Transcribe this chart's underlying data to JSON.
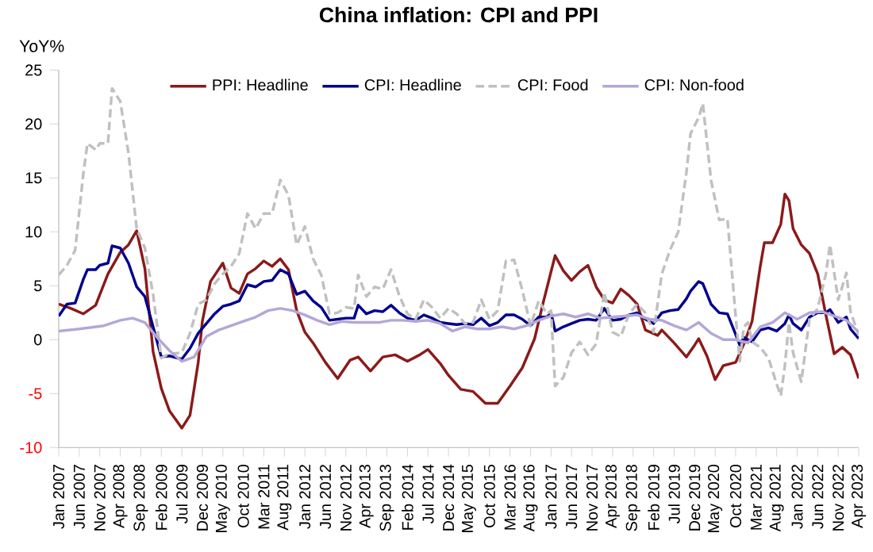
{
  "chart_data": {
    "type": "line",
    "title": "China inflation: CPI and PPI",
    "ylabel": "YoY%",
    "xlim": [
      "2007-01",
      "2023-04"
    ],
    "ylim": [
      -10,
      25
    ],
    "yticks": [
      -10,
      -5,
      0,
      5,
      10,
      15,
      20,
      25
    ],
    "xticks": [
      {
        "value": "2007-01",
        "label": "Jan 2007"
      },
      {
        "value": "2007-06",
        "label": "Jun 2007"
      },
      {
        "value": "2007-11",
        "label": "Nov 2007"
      },
      {
        "value": "2008-04",
        "label": "Apr 2008"
      },
      {
        "value": "2008-09",
        "label": "Sep 2008"
      },
      {
        "value": "2009-02",
        "label": "Feb 2009"
      },
      {
        "value": "2009-07",
        "label": "Jul 2009"
      },
      {
        "value": "2009-12",
        "label": "Dec 2009"
      },
      {
        "value": "2010-05",
        "label": "May 2010"
      },
      {
        "value": "2010-10",
        "label": "Oct 2010"
      },
      {
        "value": "2011-03",
        "label": "Mar 2011"
      },
      {
        "value": "2011-08",
        "label": "Aug 2011"
      },
      {
        "value": "2012-01",
        "label": "Jan 2012"
      },
      {
        "value": "2012-06",
        "label": "Jun 2012"
      },
      {
        "value": "2012-11",
        "label": "Nov 2012"
      },
      {
        "value": "2013-04",
        "label": "Apr 2013"
      },
      {
        "value": "2013-09",
        "label": "Sep 2013"
      },
      {
        "value": "2014-02",
        "label": "Feb 2014"
      },
      {
        "value": "2014-07",
        "label": "Jul 2014"
      },
      {
        "value": "2014-12",
        "label": "Dec 2014"
      },
      {
        "value": "2015-05",
        "label": "May 2015"
      },
      {
        "value": "2015-10",
        "label": "Oct 2015"
      },
      {
        "value": "2016-03",
        "label": "Mar 2016"
      },
      {
        "value": "2016-08",
        "label": "Aug 2016"
      },
      {
        "value": "2017-01",
        "label": "Jan 2017"
      },
      {
        "value": "2017-06",
        "label": "Jun 2017"
      },
      {
        "value": "2017-11",
        "label": "Nov 2017"
      },
      {
        "value": "2018-04",
        "label": "Apr 2018"
      },
      {
        "value": "2018-09",
        "label": "Sep 2018"
      },
      {
        "value": "2019-02",
        "label": "Feb 2019"
      },
      {
        "value": "2019-07",
        "label": "Jul 2019"
      },
      {
        "value": "2019-12",
        "label": "Dec 2019"
      },
      {
        "value": "2020-05",
        "label": "May 2020"
      },
      {
        "value": "2020-10",
        "label": "Oct 2020"
      },
      {
        "value": "2021-03",
        "label": "Mar 2021"
      },
      {
        "value": "2021-08",
        "label": "Aug 2021"
      },
      {
        "value": "2022-01",
        "label": "Jan 2022"
      },
      {
        "value": "2022-06",
        "label": "Jun 2022"
      },
      {
        "value": "2022-11",
        "label": "Nov 2022"
      },
      {
        "value": "2023-04",
        "label": "Apr 2023"
      }
    ],
    "legend": "top",
    "line_style": "solid",
    "marker": "none",
    "series": [
      {
        "name": "PPI: Headline",
        "color": "#8b1a1a",
        "x": [
          "2007-01",
          "2007-04",
          "2007-07",
          "2007-10",
          "2008-01",
          "2008-04",
          "2008-06",
          "2008-08",
          "2008-10",
          "2008-12",
          "2009-02",
          "2009-04",
          "2009-07",
          "2009-09",
          "2009-11",
          "2009-12",
          "2010-02",
          "2010-05",
          "2010-07",
          "2010-09",
          "2010-11",
          "2011-01",
          "2011-03",
          "2011-05",
          "2011-07",
          "2011-09",
          "2011-11",
          "2012-01",
          "2012-03",
          "2012-06",
          "2012-09",
          "2012-12",
          "2013-02",
          "2013-05",
          "2013-08",
          "2013-11",
          "2014-02",
          "2014-05",
          "2014-07",
          "2014-10",
          "2014-12",
          "2015-03",
          "2015-06",
          "2015-09",
          "2015-12",
          "2016-03",
          "2016-06",
          "2016-09",
          "2016-11",
          "2017-02",
          "2017-04",
          "2017-06",
          "2017-08",
          "2017-10",
          "2017-12",
          "2018-02",
          "2018-04",
          "2018-06",
          "2018-08",
          "2018-10",
          "2018-12",
          "2019-03",
          "2019-04",
          "2019-07",
          "2019-10",
          "2019-12",
          "2020-01",
          "2020-03",
          "2020-05",
          "2020-07",
          "2020-10",
          "2020-12",
          "2021-02",
          "2021-04",
          "2021-05",
          "2021-07",
          "2021-09",
          "2021-10",
          "2021-11",
          "2021-12",
          "2022-02",
          "2022-04",
          "2022-06",
          "2022-08",
          "2022-10",
          "2022-12",
          "2023-02",
          "2023-04"
        ],
        "values": [
          3.3,
          2.9,
          2.4,
          3.2,
          6.1,
          8.1,
          8.8,
          10.1,
          6.6,
          -1.1,
          -4.5,
          -6.6,
          -8.2,
          -7.0,
          -2.1,
          1.7,
          5.4,
          7.1,
          4.8,
          4.3,
          6.1,
          6.6,
          7.3,
          6.8,
          7.5,
          6.5,
          2.7,
          0.7,
          -0.3,
          -2.1,
          -3.6,
          -1.9,
          -1.6,
          -2.9,
          -1.6,
          -1.4,
          -2.0,
          -1.4,
          -0.9,
          -2.2,
          -3.3,
          -4.6,
          -4.8,
          -5.9,
          -5.9,
          -4.3,
          -2.6,
          0.1,
          3.3,
          7.8,
          6.4,
          5.5,
          6.3,
          6.9,
          4.9,
          3.7,
          3.4,
          4.7,
          4.1,
          3.3,
          0.9,
          0.4,
          0.9,
          -0.3,
          -1.6,
          -0.5,
          0.1,
          -1.5,
          -3.7,
          -2.4,
          -2.1,
          -0.4,
          1.7,
          6.8,
          9.0,
          9.0,
          10.7,
          13.5,
          12.9,
          10.3,
          8.8,
          8.0,
          6.1,
          2.3,
          -1.3,
          -0.7,
          -1.4,
          -3.6
        ]
      },
      {
        "name": "CPI: Headline",
        "color": "#00008b",
        "x": [
          "2007-01",
          "2007-03",
          "2007-05",
          "2007-07",
          "2007-08",
          "2007-10",
          "2007-11",
          "2008-01",
          "2008-02",
          "2008-04",
          "2008-06",
          "2008-08",
          "2008-10",
          "2008-12",
          "2009-02",
          "2009-04",
          "2009-07",
          "2009-09",
          "2009-11",
          "2010-01",
          "2010-03",
          "2010-05",
          "2010-07",
          "2010-09",
          "2010-11",
          "2011-01",
          "2011-03",
          "2011-05",
          "2011-07",
          "2011-09",
          "2011-11",
          "2012-01",
          "2012-03",
          "2012-05",
          "2012-07",
          "2012-09",
          "2012-11",
          "2013-01",
          "2013-02",
          "2013-04",
          "2013-06",
          "2013-08",
          "2013-10",
          "2013-12",
          "2014-02",
          "2014-04",
          "2014-06",
          "2014-08",
          "2014-10",
          "2014-12",
          "2015-02",
          "2015-04",
          "2015-06",
          "2015-08",
          "2015-10",
          "2015-12",
          "2016-02",
          "2016-04",
          "2016-06",
          "2016-08",
          "2016-10",
          "2016-12",
          "2017-01",
          "2017-02",
          "2017-04",
          "2017-06",
          "2017-08",
          "2017-10",
          "2017-12",
          "2018-02",
          "2018-04",
          "2018-06",
          "2018-08",
          "2018-10",
          "2018-12",
          "2019-02",
          "2019-04",
          "2019-06",
          "2019-08",
          "2019-10",
          "2019-11",
          "2020-01",
          "2020-02",
          "2020-04",
          "2020-06",
          "2020-08",
          "2020-10",
          "2020-11",
          "2020-12",
          "2021-02",
          "2021-04",
          "2021-06",
          "2021-08",
          "2021-10",
          "2021-11",
          "2021-12",
          "2022-02",
          "2022-04",
          "2022-06",
          "2022-08",
          "2022-09",
          "2022-11",
          "2023-01",
          "2023-02",
          "2023-04"
        ],
        "values": [
          2.2,
          3.3,
          3.4,
          5.6,
          6.5,
          6.5,
          6.9,
          7.1,
          8.7,
          8.5,
          7.1,
          4.9,
          4.0,
          1.2,
          -1.6,
          -1.5,
          -1.8,
          -0.8,
          0.6,
          1.5,
          2.4,
          3.1,
          3.3,
          3.6,
          5.1,
          4.9,
          5.4,
          5.5,
          6.5,
          6.1,
          4.2,
          4.5,
          3.6,
          3.0,
          1.8,
          1.9,
          2.0,
          2.0,
          3.2,
          2.4,
          2.7,
          2.6,
          3.2,
          2.5,
          2.0,
          1.8,
          2.3,
          2.0,
          1.6,
          1.5,
          1.4,
          1.5,
          1.4,
          2.0,
          1.3,
          1.6,
          2.3,
          2.3,
          1.9,
          1.3,
          2.1,
          2.1,
          2.5,
          0.8,
          1.2,
          1.5,
          1.8,
          1.9,
          1.8,
          2.9,
          1.8,
          1.9,
          2.3,
          2.5,
          1.9,
          1.5,
          2.5,
          2.7,
          2.8,
          3.8,
          4.5,
          5.4,
          5.2,
          3.3,
          2.5,
          2.4,
          0.5,
          -0.5,
          0.2,
          -0.2,
          0.9,
          1.1,
          0.8,
          1.5,
          2.3,
          1.5,
          0.9,
          2.1,
          2.5,
          2.5,
          2.8,
          1.6,
          2.1,
          1.0,
          0.1
        ]
      },
      {
        "name": "CPI: Food",
        "color": "#c0c0c0",
        "line_style": "dashed",
        "x": [
          "2007-01",
          "2007-03",
          "2007-05",
          "2007-07",
          "2007-08",
          "2007-10",
          "2007-11",
          "2008-01",
          "2008-02",
          "2008-04",
          "2008-06",
          "2008-08",
          "2008-10",
          "2008-12",
          "2009-02",
          "2009-04",
          "2009-07",
          "2009-09",
          "2009-11",
          "2010-01",
          "2010-03",
          "2010-05",
          "2010-07",
          "2010-09",
          "2010-11",
          "2011-01",
          "2011-03",
          "2011-05",
          "2011-07",
          "2011-09",
          "2011-11",
          "2012-01",
          "2012-03",
          "2012-05",
          "2012-07",
          "2012-09",
          "2012-11",
          "2013-01",
          "2013-02",
          "2013-04",
          "2013-06",
          "2013-08",
          "2013-10",
          "2013-12",
          "2014-02",
          "2014-04",
          "2014-06",
          "2014-08",
          "2014-10",
          "2014-12",
          "2015-02",
          "2015-04",
          "2015-06",
          "2015-08",
          "2015-10",
          "2015-12",
          "2016-02",
          "2016-04",
          "2016-06",
          "2016-08",
          "2016-10",
          "2016-12",
          "2017-01",
          "2017-02",
          "2017-04",
          "2017-06",
          "2017-08",
          "2017-10",
          "2017-12",
          "2018-02",
          "2018-04",
          "2018-06",
          "2018-08",
          "2018-10",
          "2018-12",
          "2019-02",
          "2019-04",
          "2019-06",
          "2019-08",
          "2019-10",
          "2019-11",
          "2020-01",
          "2020-02",
          "2020-04",
          "2020-06",
          "2020-08",
          "2020-10",
          "2020-11",
          "2020-12",
          "2021-01",
          "2021-02",
          "2021-04",
          "2021-06",
          "2021-08",
          "2021-09",
          "2021-10",
          "2021-11",
          "2021-12",
          "2022-02",
          "2022-04",
          "2022-06",
          "2022-08",
          "2022-09",
          "2022-11",
          "2023-01",
          "2023-02",
          "2023-04"
        ],
        "values": [
          6.0,
          6.9,
          8.3,
          15.4,
          18.2,
          17.6,
          18.2,
          18.2,
          23.3,
          22.1,
          17.3,
          10.3,
          8.5,
          4.2,
          -1.7,
          -1.3,
          -1.2,
          0.6,
          3.3,
          3.7,
          5.2,
          6.1,
          6.8,
          8.0,
          11.7,
          10.3,
          11.7,
          11.7,
          14.8,
          13.4,
          8.8,
          10.5,
          7.5,
          6.0,
          2.4,
          2.5,
          3.0,
          2.9,
          6.0,
          4.0,
          4.9,
          4.7,
          6.5,
          4.1,
          2.4,
          1.9,
          3.7,
          3.0,
          2.0,
          2.9,
          2.4,
          1.5,
          1.6,
          3.7,
          1.9,
          2.7,
          7.3,
          7.4,
          4.6,
          1.3,
          3.6,
          2.4,
          2.7,
          -4.3,
          -3.5,
          -1.2,
          -0.2,
          -1.4,
          -0.4,
          4.4,
          0.7,
          0.3,
          2.4,
          3.3,
          2.5,
          0.7,
          6.1,
          8.3,
          10.0,
          15.5,
          19.1,
          20.6,
          21.9,
          14.8,
          11.1,
          11.2,
          2.2,
          -2.0,
          1.2,
          1.6,
          -0.2,
          -0.7,
          -1.7,
          -4.1,
          -5.2,
          -2.4,
          1.6,
          -1.2,
          -3.9,
          1.9,
          2.9,
          6.1,
          8.8,
          3.7,
          6.2,
          2.6,
          0.4
        ]
      },
      {
        "name": "CPI: Non-food",
        "color": "#b4a7d6",
        "x": [
          "2007-01",
          "2007-06",
          "2007-12",
          "2008-04",
          "2008-07",
          "2008-10",
          "2009-01",
          "2009-04",
          "2009-07",
          "2009-10",
          "2010-01",
          "2010-04",
          "2010-07",
          "2010-10",
          "2011-01",
          "2011-04",
          "2011-07",
          "2011-10",
          "2012-01",
          "2012-04",
          "2012-07",
          "2012-10",
          "2013-01",
          "2013-04",
          "2013-07",
          "2013-10",
          "2014-01",
          "2014-04",
          "2014-07",
          "2014-10",
          "2015-01",
          "2015-04",
          "2015-07",
          "2015-10",
          "2016-01",
          "2016-04",
          "2016-07",
          "2016-10",
          "2017-01",
          "2017-04",
          "2017-07",
          "2017-10",
          "2018-01",
          "2018-04",
          "2018-07",
          "2018-10",
          "2019-01",
          "2019-04",
          "2019-07",
          "2019-10",
          "2020-01",
          "2020-04",
          "2020-07",
          "2020-10",
          "2021-01",
          "2021-04",
          "2021-07",
          "2021-10",
          "2022-01",
          "2022-04",
          "2022-07",
          "2022-10",
          "2023-01",
          "2023-04"
        ],
        "values": [
          0.8,
          1.0,
          1.3,
          1.8,
          2.0,
          1.6,
          0.2,
          -1.0,
          -2.0,
          -1.6,
          0.3,
          0.9,
          1.3,
          1.7,
          2.1,
          2.7,
          2.9,
          2.7,
          2.3,
          1.8,
          1.4,
          1.7,
          1.6,
          1.6,
          1.6,
          1.8,
          1.8,
          1.7,
          1.8,
          1.5,
          0.8,
          1.2,
          1.0,
          1.0,
          1.2,
          1.0,
          1.3,
          1.8,
          2.2,
          2.4,
          2.1,
          2.4,
          2.0,
          2.1,
          2.2,
          2.3,
          1.9,
          1.8,
          1.3,
          0.9,
          1.6,
          0.6,
          0.0,
          0.0,
          -0.3,
          1.2,
          1.6,
          2.5,
          1.9,
          2.5,
          2.6,
          2.2,
          1.8,
          0.7
        ]
      }
    ]
  }
}
